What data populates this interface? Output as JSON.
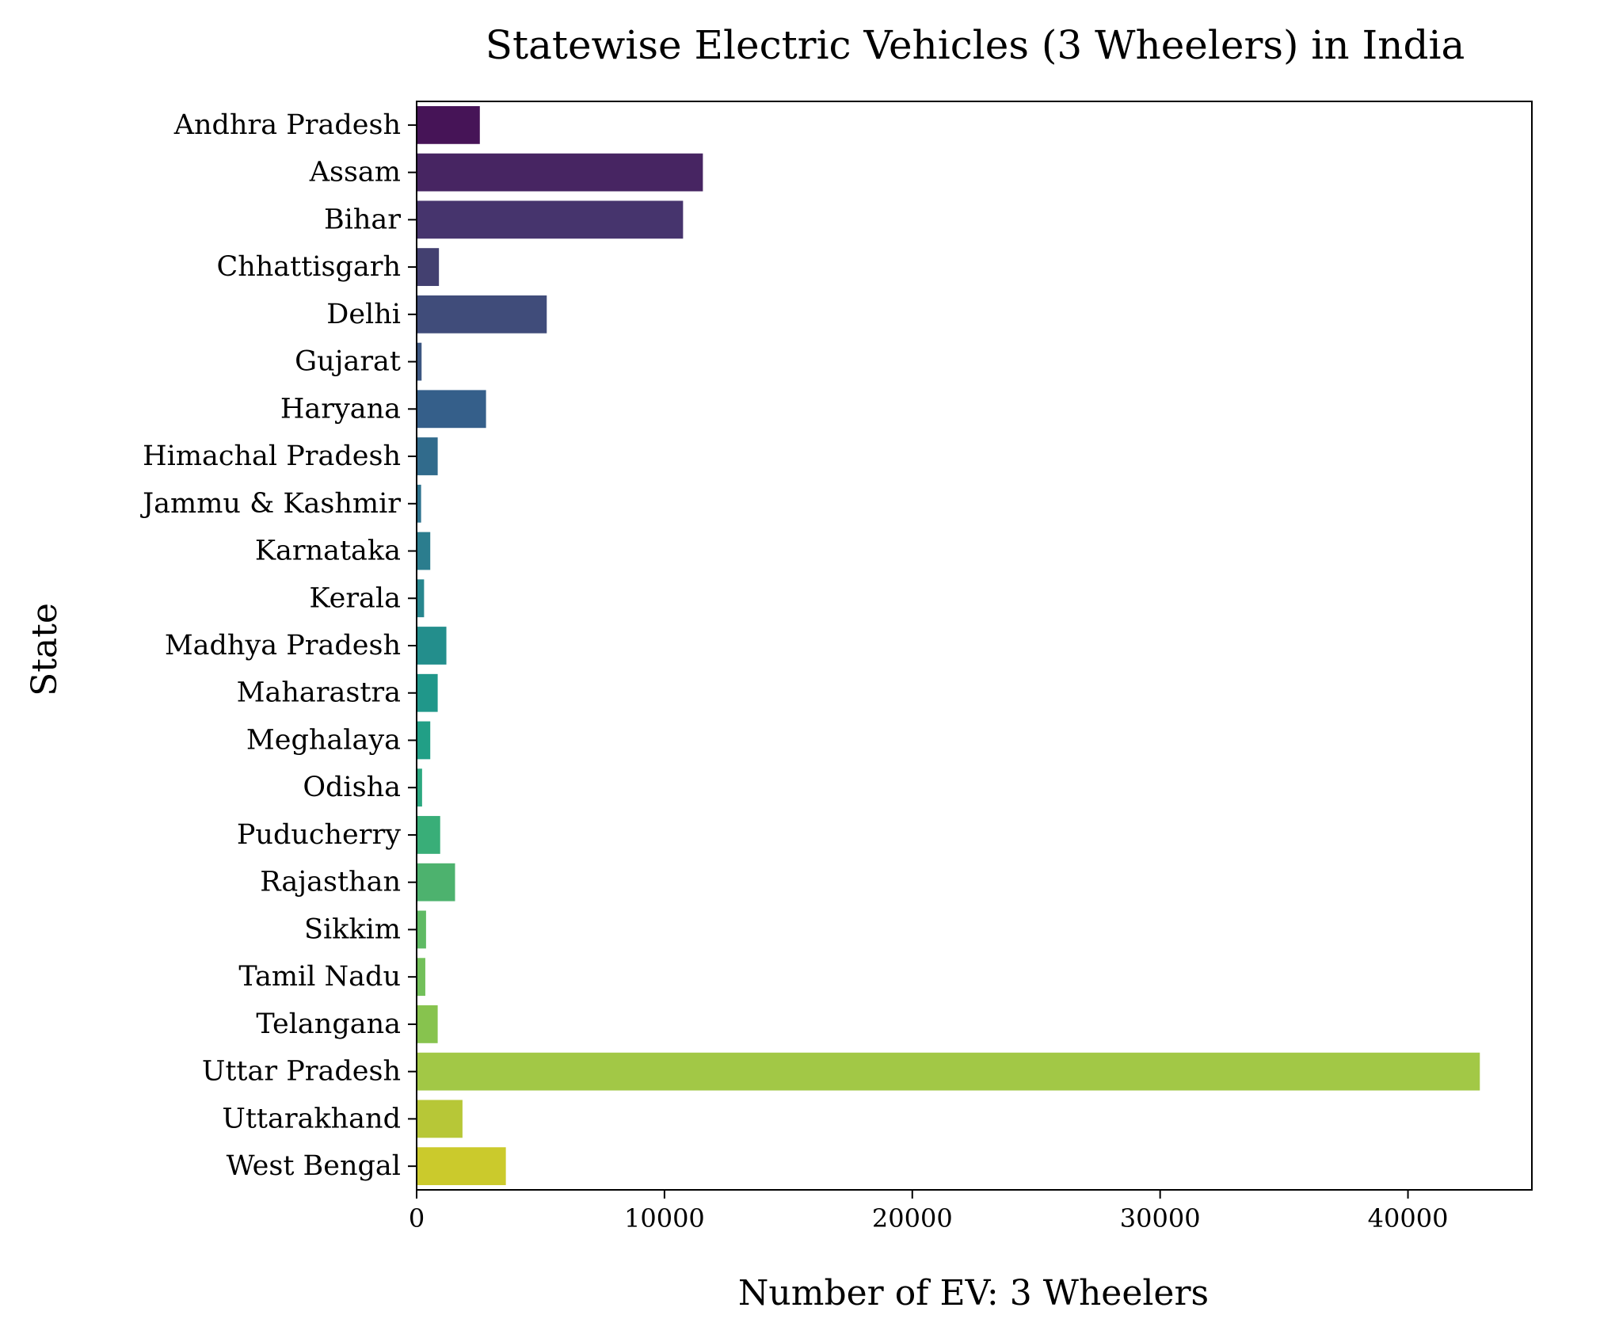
{
  "chart_data": {
    "type": "bar",
    "orientation": "horizontal",
    "title": "Statewise Electric Vehicles (3 Wheelers) in India",
    "xlabel": "Number of EV: 3 Wheelers",
    "ylabel": "State",
    "xlim": [
      0,
      45000
    ],
    "xticks": [
      0,
      10000,
      20000,
      30000,
      40000
    ],
    "xtick_labels": [
      "0",
      "10000",
      "20000",
      "30000",
      "40000"
    ],
    "grid": false,
    "legend": "none",
    "palette": "viridis",
    "categories": [
      "Andhra Pradesh",
      "Assam",
      "Bihar",
      "Chhattisgarh",
      "Delhi",
      "Gujarat",
      "Haryana",
      "Himachal Pradesh",
      "Jammu & Kashmir",
      "Karnataka",
      "Kerala",
      "Madhya Pradesh",
      "Maharastra",
      "Meghalaya",
      "Odisha",
      "Puducherry",
      "Rajasthan",
      "Sikkim",
      "Tamil Nadu",
      "Telangana",
      "Uttar Pradesh",
      "Uttarakhand",
      "West Bengal"
    ],
    "values": [
      2550,
      11550,
      10750,
      900,
      5250,
      200,
      2800,
      850,
      180,
      550,
      300,
      1200,
      850,
      550,
      220,
      950,
      1550,
      380,
      350,
      850,
      42900,
      1850,
      3600
    ],
    "colors": [
      "#461457",
      "#472562",
      "#46346d",
      "#434070",
      "#404c7a",
      "#3c5681",
      "#355f8a",
      "#316b8c",
      "#2e738e",
      "#2b7d8e",
      "#27868e",
      "#238e8c",
      "#20978a",
      "#219f86",
      "#2ba880",
      "#39ae78",
      "#4db26e",
      "#5fba64",
      "#72c05a",
      "#87c34e",
      "#a2c846",
      "#b7c737",
      "#cbca2c"
    ]
  }
}
